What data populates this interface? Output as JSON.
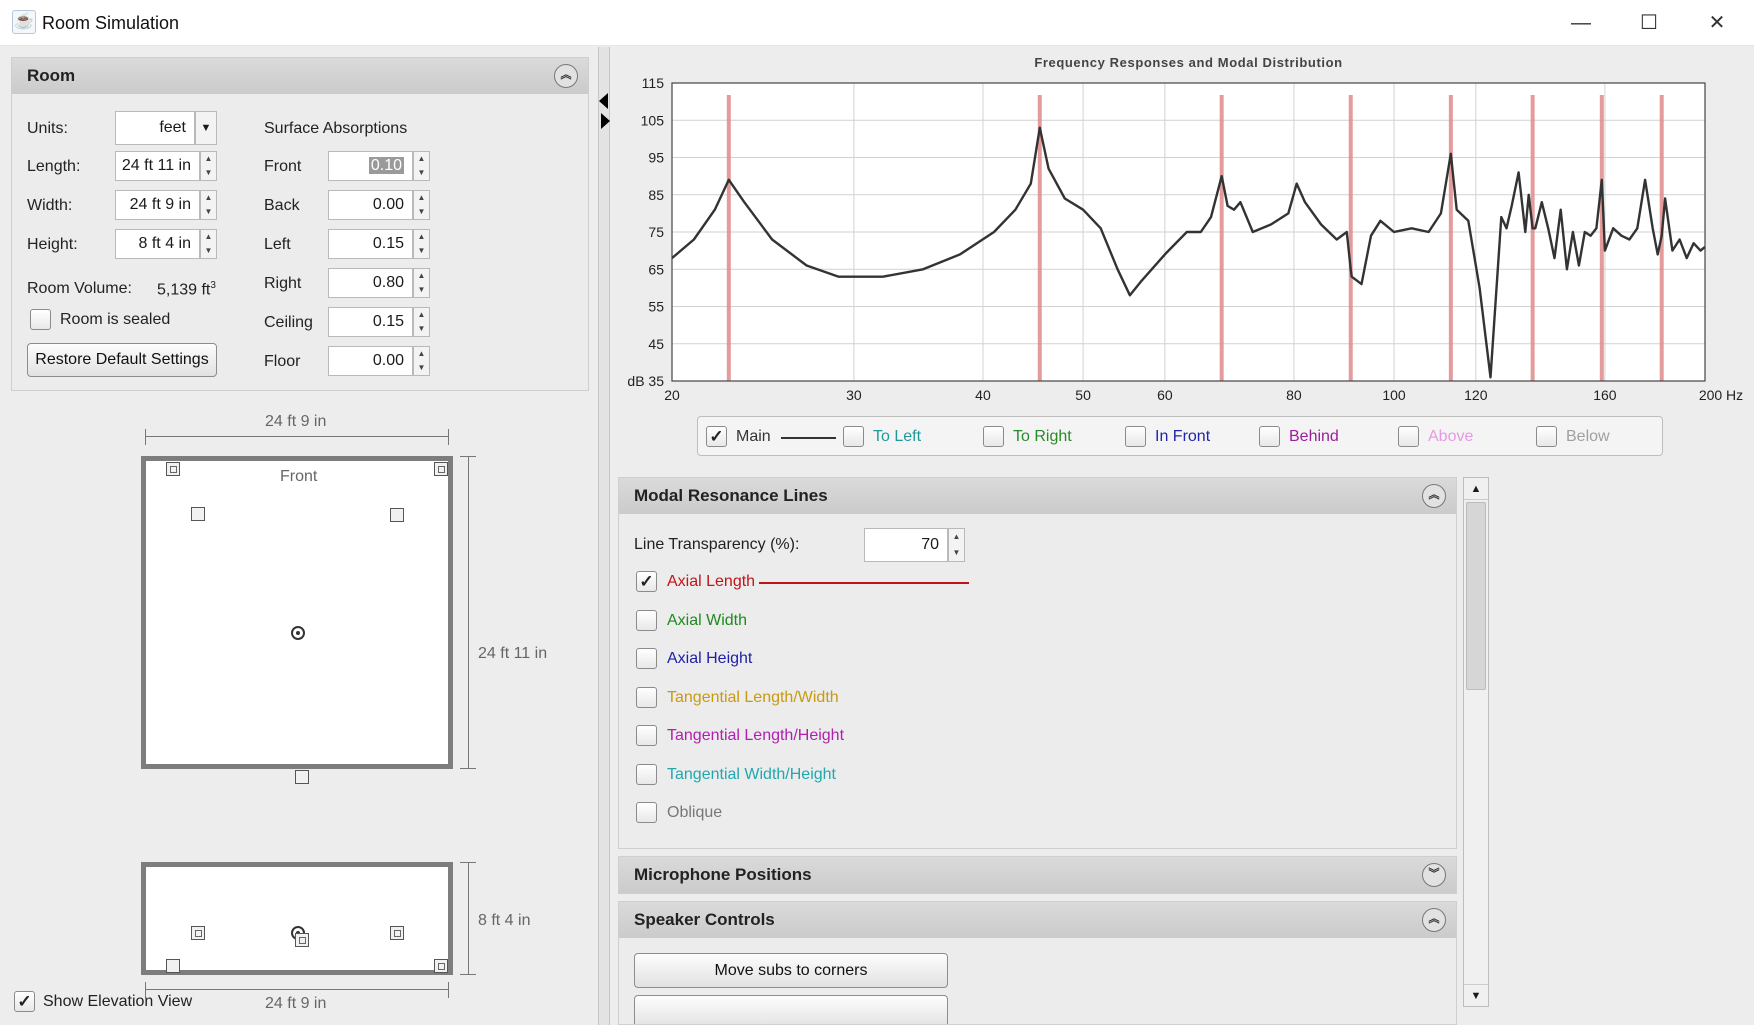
{
  "window": {
    "title": "Room Simulation",
    "controls": [
      "—",
      "☐",
      "✕"
    ]
  },
  "room_panel": {
    "title": "Room",
    "units_label": "Units:",
    "units_value": "feet",
    "length_label": "Length:",
    "length_value": "24 ft 11 in",
    "width_label": "Width:",
    "width_value": "24 ft 9 in",
    "height_label": "Height:",
    "height_value": "8 ft 4 in",
    "volume_label": "Room Volume:",
    "volume_value": "5,139 ft",
    "volume_unit_sup": "3",
    "sealed_label": "Room is sealed",
    "sealed_checked": false,
    "restore_label": "Restore Default Settings",
    "surface_title": "Surface Absorptions",
    "surfaces": [
      {
        "label": "Front",
        "value": "0.10"
      },
      {
        "label": "Back",
        "value": "0.00"
      },
      {
        "label": "Left",
        "value": "0.15"
      },
      {
        "label": "Right",
        "value": "0.80"
      },
      {
        "label": "Ceiling",
        "value": "0.15"
      },
      {
        "label": "Floor",
        "value": "0.00"
      }
    ]
  },
  "plan_view": {
    "top_dim": "24 ft 9 in",
    "side_dim": "24 ft 11 in",
    "front_label": "Front"
  },
  "elevation_view": {
    "side_dim": "8 ft 4 in",
    "bottom_dim": "24 ft 9 in",
    "show_label": "Show Elevation View",
    "show_checked": true
  },
  "chart_data": {
    "type": "line",
    "title": "Frequency Responses and Modal Distribution",
    "xlabel": "Hz",
    "ylabel": "dB",
    "x_scale": "log",
    "xlim": [
      20,
      200
    ],
    "ylim": [
      35,
      115
    ],
    "x_ticks": [
      20,
      30,
      40,
      50,
      60,
      80,
      100,
      120,
      160,
      200
    ],
    "y_ticks": [
      35,
      45,
      55,
      65,
      75,
      85,
      95,
      105,
      115
    ],
    "x_tick_labels": [
      "20",
      "30",
      "40",
      "50",
      "60",
      "80",
      "100",
      "120",
      "160",
      "200 Hz"
    ],
    "y_tick_labels": [
      "dB 35",
      "45",
      "55",
      "65",
      "75",
      "85",
      "95",
      "105",
      "115"
    ],
    "grid": true,
    "modal_lines_hz": [
      22.7,
      45.4,
      68.1,
      90.8,
      113.5,
      136.2,
      158.9,
      181.6
    ],
    "modal_line_color": "#e08a8a",
    "series": [
      {
        "name": "Main",
        "color": "#333333",
        "x": [
          20,
          21,
          22,
          22.7,
          23.5,
          25,
          27,
          29,
          32,
          35,
          38,
          41,
          43,
          44.5,
          45.4,
          46.3,
          48,
          50,
          52,
          54,
          55.5,
          57,
          60,
          63,
          65,
          66.5,
          68.1,
          69,
          70,
          71,
          73,
          76,
          79,
          80.5,
          82,
          85,
          88,
          90,
          90.8,
          91,
          93,
          95,
          97,
          100,
          104,
          108,
          111,
          113.5,
          115,
          118,
          121,
          124,
          127,
          128.5,
          130,
          132,
          134,
          135,
          136.2,
          137,
          139,
          141,
          143,
          145,
          147,
          149,
          151,
          153,
          155,
          157,
          158.9,
          160,
          163,
          166,
          169,
          172,
          175,
          178,
          180,
          181.6,
          183,
          186,
          189,
          192,
          195,
          198,
          200
        ],
        "y": [
          68,
          73,
          81,
          89,
          83,
          73,
          66,
          63,
          63,
          65,
          69,
          75,
          81,
          88,
          103,
          92,
          84,
          81,
          76,
          65,
          58,
          62,
          69,
          75,
          75,
          79,
          90,
          82,
          81,
          83,
          75,
          77,
          80,
          88,
          83,
          77,
          73,
          75,
          65,
          63,
          61,
          74,
          78,
          75,
          76,
          75,
          80,
          96,
          81,
          78,
          60,
          36,
          79,
          76,
          82,
          91,
          75,
          85,
          76,
          76,
          83,
          76,
          68,
          81,
          65,
          75,
          66,
          75,
          74,
          76,
          89,
          70,
          76,
          74,
          73,
          76,
          89,
          76,
          69,
          74,
          84,
          70,
          73,
          68,
          72,
          70,
          71
        ]
      }
    ],
    "legend": [
      {
        "label": "Main",
        "checked": true,
        "color": "#333333"
      },
      {
        "label": "To Left",
        "checked": false,
        "color": "#1f9a9a"
      },
      {
        "label": "To Right",
        "checked": false,
        "color": "#2a8a2a"
      },
      {
        "label": "In Front",
        "checked": false,
        "color": "#2424a8"
      },
      {
        "label": "Behind",
        "checked": false,
        "color": "#9a1f9a"
      },
      {
        "label": "Above",
        "checked": false,
        "color": "#e69ae6"
      },
      {
        "label": "Below",
        "checked": false,
        "color": "#a0a0a0"
      }
    ]
  },
  "modal_panel": {
    "title": "Modal Resonance Lines",
    "transparency_label": "Line Transparency (%):",
    "transparency_value": "70",
    "items": [
      {
        "label": "Axial Length",
        "checked": true,
        "color": "#c0141b"
      },
      {
        "label": "Axial Width",
        "checked": false,
        "color": "#1f8a1f"
      },
      {
        "label": "Axial Height",
        "checked": false,
        "color": "#1f1fa8"
      },
      {
        "label": "Tangential Length/Width",
        "checked": false,
        "color": "#c89a10"
      },
      {
        "label": "Tangential Length/Height",
        "checked": false,
        "color": "#b01fb0"
      },
      {
        "label": "Tangential Width/Height",
        "checked": false,
        "color": "#1fa8b0"
      },
      {
        "label": "Oblique",
        "checked": false,
        "color": "#777777"
      }
    ]
  },
  "mic_panel": {
    "title": "Microphone Positions"
  },
  "speaker_panel": {
    "title": "Speaker Controls",
    "button1": "Move subs to corners"
  }
}
